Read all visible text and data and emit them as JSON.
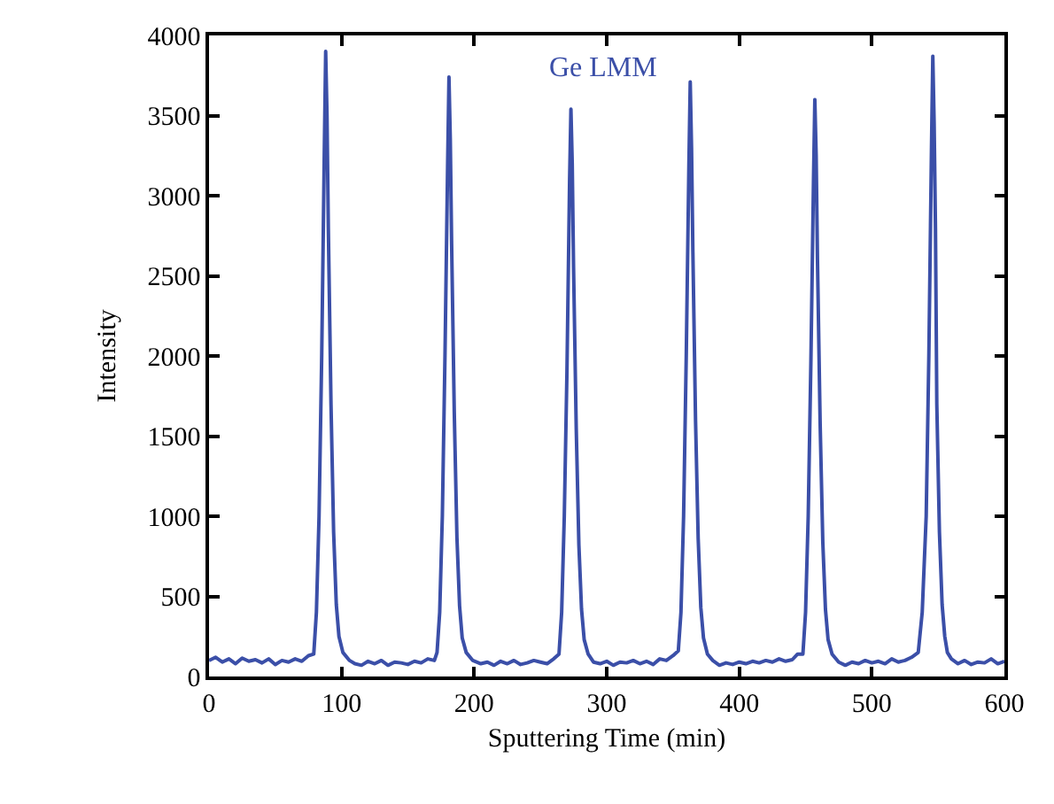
{
  "chart_data": {
    "type": "line",
    "xlabel": "Sputtering Time (min)",
    "ylabel": "Intensity",
    "xlim": [
      0,
      600
    ],
    "ylim": [
      0,
      4000
    ],
    "xticks": [
      0,
      100,
      200,
      300,
      400,
      500,
      600
    ],
    "yticks": [
      0,
      500,
      1000,
      1500,
      2000,
      2500,
      3000,
      3500,
      4000
    ],
    "grid": false,
    "legend": false,
    "marker": "none",
    "line_style": "solid",
    "series": [
      {
        "name": "Ge LMM",
        "color": "#3b4fa8",
        "x": [
          0,
          5,
          10,
          15,
          20,
          25,
          30,
          35,
          40,
          45,
          50,
          55,
          60,
          65,
          70,
          75,
          79,
          81,
          83,
          85,
          87,
          88,
          89,
          90,
          92,
          94,
          96,
          98,
          101,
          106,
          110,
          115,
          120,
          125,
          130,
          135,
          140,
          145,
          150,
          155,
          160,
          165,
          170,
          172,
          174,
          176,
          178,
          180,
          181,
          182,
          183,
          185,
          187,
          189,
          191,
          194,
          199,
          205,
          210,
          215,
          220,
          225,
          230,
          235,
          240,
          245,
          250,
          255,
          260,
          264,
          266,
          268,
          270,
          272,
          273,
          274,
          275,
          277,
          279,
          281,
          283,
          286,
          290,
          295,
          300,
          305,
          310,
          315,
          320,
          325,
          330,
          335,
          340,
          345,
          350,
          354,
          356,
          358,
          360,
          362,
          363,
          364,
          365,
          367,
          369,
          371,
          373,
          376,
          380,
          385,
          390,
          395,
          400,
          405,
          410,
          415,
          420,
          425,
          430,
          435,
          440,
          444,
          448,
          450,
          452,
          454,
          456,
          457,
          458,
          459,
          461,
          463,
          465,
          467,
          470,
          475,
          480,
          485,
          490,
          495,
          500,
          505,
          510,
          515,
          520,
          525,
          530,
          535,
          538,
          541,
          543,
          545,
          546,
          547,
          548,
          549,
          551,
          553,
          555,
          557,
          560,
          565,
          570,
          575,
          580,
          585,
          590,
          595,
          600
        ],
        "values": [
          100,
          120,
          90,
          110,
          80,
          115,
          95,
          105,
          85,
          110,
          75,
          100,
          90,
          110,
          95,
          130,
          140,
          400,
          1000,
          2000,
          3300,
          3900,
          3500,
          2800,
          1700,
          900,
          450,
          250,
          150,
          100,
          80,
          70,
          95,
          80,
          100,
          70,
          90,
          85,
          75,
          95,
          85,
          110,
          100,
          150,
          400,
          1000,
          2000,
          3200,
          3740,
          3350,
          2700,
          1650,
          870,
          440,
          240,
          150,
          100,
          80,
          90,
          70,
          95,
          80,
          100,
          75,
          85,
          100,
          90,
          80,
          110,
          140,
          400,
          1000,
          1900,
          3100,
          3540,
          3200,
          2550,
          1550,
          820,
          420,
          230,
          140,
          90,
          80,
          95,
          70,
          90,
          85,
          100,
          80,
          95,
          75,
          110,
          100,
          130,
          160,
          400,
          1000,
          2000,
          3200,
          3710,
          3300,
          2650,
          1600,
          860,
          430,
          240,
          140,
          100,
          70,
          85,
          75,
          90,
          80,
          95,
          85,
          100,
          90,
          110,
          95,
          105,
          140,
          140,
          400,
          1000,
          1950,
          3100,
          3600,
          3250,
          2600,
          1580,
          840,
          420,
          230,
          140,
          90,
          70,
          90,
          80,
          100,
          85,
          95,
          80,
          110,
          90,
          100,
          120,
          150,
          400,
          1000,
          2000,
          3300,
          3870,
          3450,
          2800,
          1700,
          900,
          450,
          250,
          150,
          110,
          80,
          100,
          75,
          90,
          85,
          110,
          80,
          95
        ]
      }
    ]
  }
}
